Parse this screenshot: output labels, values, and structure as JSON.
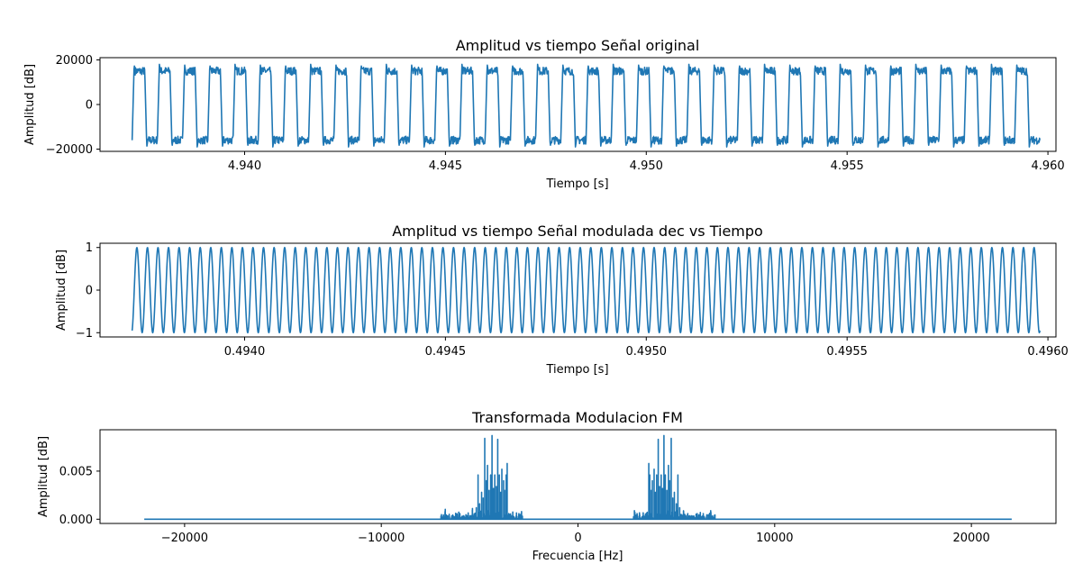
{
  "chart_data": [
    {
      "type": "line",
      "title": "Amplitud vs tiempo Señal original",
      "xlabel": "Tiempo [s]",
      "ylabel": "Amplitud [dB]",
      "xlim": [
        4.9364,
        4.9602
      ],
      "ylim": [
        -21000,
        21000
      ],
      "xticks": [
        4.94,
        4.945,
        4.95,
        4.955,
        4.96
      ],
      "xtick_labels": [
        "4.940",
        "4.945",
        "4.950",
        "4.955",
        "4.960"
      ],
      "yticks": [
        -20000,
        0,
        20000
      ],
      "ytick_labels": [
        "−20000",
        "0",
        "20000"
      ],
      "series": [
        {
          "color": "#1f77b4",
          "x_start": 4.9372,
          "x_end": 4.9598,
          "cycles": 36,
          "high": 15000,
          "low": -16000,
          "peak_high": 18000,
          "peak_low": -19000,
          "shape": "square-like"
        }
      ]
    },
    {
      "type": "line",
      "title": "Amplitud vs tiempo Señal modulada dec vs Tiempo",
      "xlabel": "Tiempo [s]",
      "ylabel": "Amplitud [dB]",
      "xlim": [
        0.49364,
        0.49602
      ],
      "ylim": [
        -1.1,
        1.1
      ],
      "xticks": [
        0.494,
        0.4945,
        0.495,
        0.4955,
        0.496
      ],
      "xtick_labels": [
        "0.4940",
        "0.4945",
        "0.4950",
        "0.4955",
        "0.4960"
      ],
      "yticks": [
        -1,
        0,
        1
      ],
      "ytick_labels": [
        "−1",
        "0",
        "1"
      ],
      "series": [
        {
          "color": "#1f77b4",
          "x_start": 0.49372,
          "x_end": 0.49598,
          "cycles": 86,
          "amplitude": 1.0,
          "start_value": -0.95,
          "end_value": 0.45,
          "shape": "sinusoid"
        }
      ]
    },
    {
      "type": "line",
      "title": "Transformada Modulacion FM",
      "xlabel": "Frecuencia [Hz]",
      "ylabel": "Amplitud [dB]",
      "xlim": [
        -24300,
        24300
      ],
      "ylim": [
        -0.00044,
        0.0093
      ],
      "xticks": [
        -20000,
        -10000,
        0,
        10000,
        20000
      ],
      "xtick_labels": [
        "−20000",
        "−10000",
        "0",
        "10000",
        "20000"
      ],
      "yticks": [
        0.0,
        0.005
      ],
      "ytick_labels": [
        "0.000",
        "0.005"
      ],
      "series": [
        {
          "color": "#1f77b4",
          "x_start": -22050,
          "x_end": 22050,
          "peaks": [
            {
              "f": 3600,
              "a": 0.0058
            },
            {
              "f": 3650,
              "a": 0.0046
            },
            {
              "f": 3730,
              "a": 0.003
            },
            {
              "f": 3780,
              "a": 0.004
            },
            {
              "f": 3870,
              "a": 0.0052
            },
            {
              "f": 3930,
              "a": 0.0028
            },
            {
              "f": 4000,
              "a": 0.0046
            },
            {
              "f": 4080,
              "a": 0.0083
            },
            {
              "f": 4150,
              "a": 0.0034
            },
            {
              "f": 4230,
              "a": 0.0046
            },
            {
              "f": 4300,
              "a": 0.0032
            },
            {
              "f": 4370,
              "a": 0.0087
            },
            {
              "f": 4440,
              "a": 0.0046
            },
            {
              "f": 4520,
              "a": 0.003
            },
            {
              "f": 4600,
              "a": 0.0056
            },
            {
              "f": 4660,
              "a": 0.004
            },
            {
              "f": 4740,
              "a": 0.0084
            },
            {
              "f": 4820,
              "a": 0.0022
            },
            {
              "f": 4900,
              "a": 0.0028
            },
            {
              "f": 5000,
              "a": 0.0016
            },
            {
              "f": 5080,
              "a": 0.0046
            },
            {
              "f": 5170,
              "a": 0.0012
            }
          ],
          "mirror": true,
          "noise_band": [
            2800,
            7000
          ]
        }
      ]
    }
  ]
}
